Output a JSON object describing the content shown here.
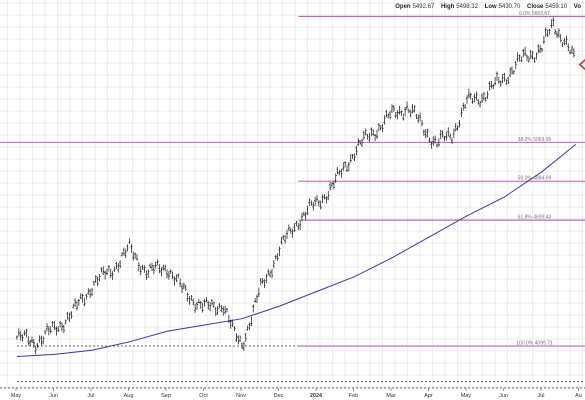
{
  "header": {
    "open_label": "Open",
    "open_value": "5492.67",
    "high_label": "High",
    "high_value": "5498.32",
    "low_label": "Low",
    "low_value": "5430.70",
    "close_label": "Close",
    "close_value": "5459.10",
    "vol_label": "Vo"
  },
  "chart_data": {
    "type": "ohlc",
    "x_tick_labels": [
      "May",
      "Jun",
      "Jul",
      "Aug",
      "Sep",
      "Oct",
      "Nov",
      "Dec",
      "2024",
      "Feb",
      "Mar",
      "Apr",
      "May",
      "Jun",
      "Jul",
      "Au"
    ],
    "ylim": [
      3900,
      5700
    ],
    "price_path": [
      {
        "m": 0.0,
        "v": 4140
      },
      {
        "m": 0.5,
        "v": 4120
      },
      {
        "m": 1.0,
        "v": 4180
      },
      {
        "m": 1.5,
        "v": 4260
      },
      {
        "m": 2.0,
        "v": 4390
      },
      {
        "m": 2.5,
        "v": 4460
      },
      {
        "m": 3.0,
        "v": 4560
      },
      {
        "m": 3.5,
        "v": 4450
      },
      {
        "m": 4.0,
        "v": 4480
      },
      {
        "m": 4.4,
        "v": 4370
      },
      {
        "m": 5.0,
        "v": 4280
      },
      {
        "m": 5.5,
        "v": 4300
      },
      {
        "m": 5.8,
        "v": 4150
      },
      {
        "m": 6.0,
        "v": 4110
      },
      {
        "m": 6.5,
        "v": 4370
      },
      {
        "m": 7.0,
        "v": 4560
      },
      {
        "m": 7.5,
        "v": 4700
      },
      {
        "m": 8.0,
        "v": 4780
      },
      {
        "m": 8.5,
        "v": 4880
      },
      {
        "m": 9.0,
        "v": 5030
      },
      {
        "m": 9.5,
        "v": 5120
      },
      {
        "m": 10.0,
        "v": 5200
      },
      {
        "m": 10.4,
        "v": 5240
      },
      {
        "m": 10.8,
        "v": 5150
      },
      {
        "m": 11.2,
        "v": 5060
      },
      {
        "m": 11.6,
        "v": 5110
      },
      {
        "m": 12.0,
        "v": 5260
      },
      {
        "m": 12.5,
        "v": 5300
      },
      {
        "m": 13.0,
        "v": 5380
      },
      {
        "m": 13.5,
        "v": 5470
      },
      {
        "m": 14.0,
        "v": 5520
      },
      {
        "m": 14.3,
        "v": 5630
      },
      {
        "m": 14.6,
        "v": 5560
      },
      {
        "m": 14.9,
        "v": 5440
      }
    ],
    "moving_average": [
      {
        "m": 0.0,
        "v": 4050
      },
      {
        "m": 1.0,
        "v": 4060
      },
      {
        "m": 2.0,
        "v": 4080
      },
      {
        "m": 3.0,
        "v": 4120
      },
      {
        "m": 4.0,
        "v": 4170
      },
      {
        "m": 5.0,
        "v": 4200
      },
      {
        "m": 6.0,
        "v": 4230
      },
      {
        "m": 7.0,
        "v": 4290
      },
      {
        "m": 8.0,
        "v": 4360
      },
      {
        "m": 9.0,
        "v": 4430
      },
      {
        "m": 10.0,
        "v": 4520
      },
      {
        "m": 11.0,
        "v": 4620
      },
      {
        "m": 12.0,
        "v": 4720
      },
      {
        "m": 13.0,
        "v": 4810
      },
      {
        "m": 14.0,
        "v": 4930
      },
      {
        "m": 14.9,
        "v": 5060
      }
    ],
    "fib_levels": [
      {
        "ratio": "0.0%",
        "value": "5669.67",
        "label": "0.0% 5669.67",
        "v": 5669.67,
        "start_month": 7.5
      },
      {
        "ratio": "38.2%",
        "value": "5069.95",
        "label": "38.2% 5069.95",
        "v": 5069.95,
        "start_month": 0.0
      },
      {
        "ratio": "50.0%",
        "value": "4884.69",
        "label": "50.0% 4884.69",
        "v": 4884.69,
        "start_month": 7.5
      },
      {
        "ratio": "61.8%",
        "value": "4699.43",
        "label": "61.8% 4699.43",
        "v": 4699.43,
        "start_month": 7.5
      },
      {
        "ratio": "100.0%",
        "value": "4099.71",
        "label": "100.0% 4099.71",
        "v": 4099.71,
        "start_month": 7.5
      }
    ],
    "horizontal_lines": [
      {
        "v": 4100,
        "style": "dotted",
        "start_month": 0.0
      },
      {
        "v": 3930,
        "style": "dotted",
        "start_month": 0.0
      }
    ],
    "colors": {
      "bars": "#111111",
      "fib": "#b247b2",
      "moving_average": "#3a3aa6",
      "grid": "#dcdcdc",
      "marker": "#dd3333"
    },
    "grid": true
  }
}
